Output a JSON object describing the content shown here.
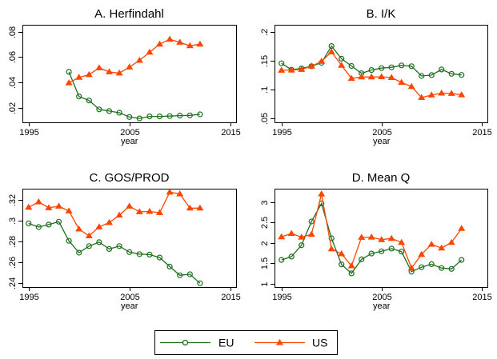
{
  "chart_data": [
    {
      "type": "line",
      "title": "A. Herfindahl",
      "xlabel": "year",
      "ylabel": "",
      "xlim": [
        1995,
        2015
      ],
      "xticks": [
        1995,
        2005,
        2015
      ],
      "xtick_labels": [
        "1995",
        "2005",
        "2015"
      ],
      "ylim": [
        0.0085,
        0.0855
      ],
      "yticks": [
        0.02,
        0.04,
        0.06,
        0.08
      ],
      "ytick_labels": [
        ".02",
        ".04",
        ".06",
        ".08"
      ],
      "grid": false,
      "series": [
        {
          "name": "EU",
          "x": [
            1999,
            2000,
            2001,
            2002,
            2003,
            2004,
            2005,
            2006,
            2007,
            2008,
            2009,
            2010,
            2011,
            2012
          ],
          "values": [
            0.0483,
            0.0289,
            0.0257,
            0.0187,
            0.0174,
            0.0161,
            0.0127,
            0.0116,
            0.0132,
            0.0132,
            0.0134,
            0.0138,
            0.014,
            0.0148
          ]
        },
        {
          "name": "US",
          "x": [
            1999,
            2000,
            2001,
            2002,
            2003,
            2004,
            2005,
            2006,
            2007,
            2008,
            2009,
            2010,
            2011,
            2012
          ],
          "values": [
            0.0397,
            0.044,
            0.0461,
            0.0515,
            0.0483,
            0.0474,
            0.0521,
            0.0574,
            0.0638,
            0.0702,
            0.0741,
            0.0717,
            0.0689,
            0.0702
          ]
        }
      ]
    },
    {
      "type": "line",
      "title": "B. I/K",
      "xlabel": "year",
      "ylabel": "",
      "xlim": [
        1995,
        2015
      ],
      "xticks": [
        1995,
        2005,
        2015
      ],
      "xtick_labels": [
        "1995",
        "2005",
        "2015"
      ],
      "ylim": [
        0.043,
        0.212
      ],
      "yticks": [
        0.05,
        0.1,
        0.15,
        0.2
      ],
      "ytick_labels": [
        ".05",
        ".1",
        ".15",
        ".2"
      ],
      "grid": false,
      "series": [
        {
          "name": "EU",
          "x": [
            1995,
            1996,
            1997,
            1998,
            1999,
            2000,
            2001,
            2002,
            2003,
            2004,
            2005,
            2006,
            2007,
            2008,
            2009,
            2010,
            2011,
            2012,
            2013
          ],
          "values": [
            0.1453,
            0.1341,
            0.1364,
            0.1402,
            0.1462,
            0.1752,
            0.1533,
            0.1407,
            0.128,
            0.1336,
            0.1369,
            0.1383,
            0.1416,
            0.1402,
            0.1234,
            0.1248,
            0.1346,
            0.1271,
            0.1252
          ]
        },
        {
          "name": "US",
          "x": [
            1995,
            1996,
            1997,
            1998,
            1999,
            2000,
            2001,
            2002,
            2003,
            2004,
            2005,
            2006,
            2007,
            2008,
            2009,
            2010,
            2011,
            2012,
            2013
          ],
          "values": [
            0.1332,
            0.1336,
            0.1346,
            0.1402,
            0.1486,
            0.165,
            0.1416,
            0.1192,
            0.1215,
            0.1215,
            0.122,
            0.1206,
            0.1121,
            0.1051,
            0.086,
            0.0902,
            0.0935,
            0.093,
            0.0907
          ]
        }
      ]
    },
    {
      "type": "line",
      "title": "C. GOS/PROD",
      "xlabel": "year",
      "ylabel": "",
      "xlim": [
        1995,
        2015
      ],
      "xticks": [
        1995,
        2005,
        2015
      ],
      "xtick_labels": [
        "1995",
        "2005",
        "2015"
      ],
      "ylim": [
        0.2365,
        0.3305
      ],
      "yticks": [
        0.24,
        0.26,
        0.28,
        0.3,
        0.32
      ],
      "ytick_labels": [
        ".24",
        ".26",
        ".28",
        ".3",
        ".32"
      ],
      "grid": false,
      "series": [
        {
          "name": "EU",
          "x": [
            1995,
            1996,
            1997,
            1998,
            1999,
            2000,
            2001,
            2002,
            2003,
            2004,
            2005,
            2006,
            2007,
            2008,
            2009,
            2010,
            2011,
            2012
          ],
          "values": [
            0.2973,
            0.2938,
            0.2962,
            0.2989,
            0.2807,
            0.2694,
            0.2756,
            0.2794,
            0.2729,
            0.2756,
            0.2699,
            0.268,
            0.2675,
            0.2647,
            0.2561,
            0.2477,
            0.2487,
            0.2401
          ]
        },
        {
          "name": "US",
          "x": [
            1995,
            1996,
            1997,
            1998,
            1999,
            2000,
            2001,
            2002,
            2003,
            2004,
            2005,
            2006,
            2007,
            2008,
            2009,
            2010,
            2011,
            2012
          ],
          "values": [
            0.3127,
            0.3179,
            0.3122,
            0.3138,
            0.3092,
            0.2919,
            0.2854,
            0.294,
            0.2981,
            0.3052,
            0.3138,
            0.3084,
            0.3087,
            0.3076,
            0.3271,
            0.3255,
            0.3119,
            0.3119
          ]
        }
      ]
    },
    {
      "type": "line",
      "title": "D. Mean Q",
      "xlabel": "year",
      "ylabel": "",
      "xlim": [
        1995,
        2015
      ],
      "xticks": [
        1995,
        2005,
        2015
      ],
      "xtick_labels": [
        "1995",
        "2005",
        "2015"
      ],
      "ylim": [
        0.92,
        3.33
      ],
      "yticks": [
        1,
        1.5,
        2,
        2.5,
        3
      ],
      "ytick_labels": [
        "1",
        "1.5",
        "2",
        "2.5",
        "3"
      ],
      "grid": false,
      "series": [
        {
          "name": "EU",
          "x": [
            1995,
            1996,
            1997,
            1998,
            1999,
            2000,
            2001,
            2002,
            2003,
            2004,
            2005,
            2006,
            2007,
            2008,
            2009,
            2010,
            2011,
            2012,
            2013
          ],
          "values": [
            1.584,
            1.666,
            1.945,
            2.526,
            2.969,
            2.116,
            1.474,
            1.256,
            1.597,
            1.741,
            1.795,
            1.863,
            1.788,
            1.297,
            1.406,
            1.481,
            1.386,
            1.365,
            1.584
          ]
        },
        {
          "name": "US",
          "x": [
            1995,
            1996,
            1997,
            1998,
            1999,
            2000,
            2001,
            2002,
            2003,
            2004,
            2005,
            2006,
            2007,
            2008,
            2009,
            2010,
            2011,
            2012,
            2013
          ],
          "values": [
            2.15,
            2.232,
            2.143,
            2.212,
            3.201,
            1.857,
            1.734,
            1.44,
            2.137,
            2.143,
            2.082,
            2.109,
            2.014,
            1.386,
            1.72,
            1.966,
            1.877,
            2.014,
            2.355
          ]
        }
      ]
    }
  ],
  "legend": {
    "placement": "bottom-center",
    "entries": [
      {
        "name": "EU",
        "marker": "hollow-circle",
        "color": "#1f6e1f"
      },
      {
        "name": "US",
        "marker": "filled-triangle",
        "color": "#ff4500"
      }
    ]
  },
  "colors": {
    "EU": "#1f6e1f",
    "US": "#ff4500"
  }
}
